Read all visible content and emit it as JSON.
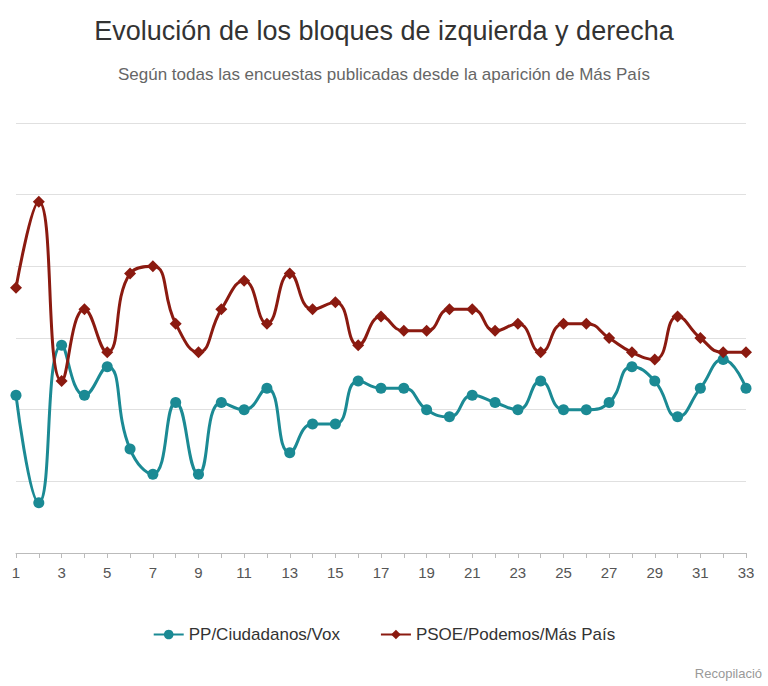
{
  "chart_data": {
    "type": "line",
    "title": "Evolución de los bloques de izquierda y derecha",
    "subtitle": "Según todas las encuestas publicadas desde la aparición de Más País",
    "annotation": "Recopilació",
    "categories": [
      "1",
      null,
      "3",
      null,
      "5",
      null,
      "7",
      null,
      "9",
      null,
      "11",
      null,
      "13",
      null,
      "15",
      null,
      "17",
      null,
      "19",
      null,
      "21",
      null,
      "23",
      null,
      "25",
      null,
      "27",
      null,
      "29",
      null,
      "31",
      null,
      "33"
    ],
    "series": [
      {
        "name": "PP/Ciudadanos/Vox",
        "color": "#1b8a94",
        "marker": "circle",
        "values": [
          42.4,
          39.4,
          43.8,
          42.4,
          43.2,
          40.9,
          40.2,
          42.2,
          40.2,
          42.2,
          42.0,
          42.6,
          40.8,
          41.6,
          41.6,
          42.8,
          42.6,
          42.6,
          42.0,
          41.8,
          42.4,
          42.2,
          42.0,
          42.8,
          42.0,
          42.0,
          42.2,
          43.2,
          42.8,
          41.8,
          42.6,
          43.4,
          42.6
        ]
      },
      {
        "name": "PSOE/Podemos/Más País",
        "color": "#8b1a10",
        "marker": "diamond",
        "values": [
          45.4,
          47.8,
          42.8,
          44.8,
          43.6,
          45.8,
          46.0,
          44.4,
          43.6,
          44.8,
          45.6,
          44.4,
          45.8,
          44.8,
          45.0,
          43.8,
          44.6,
          44.2,
          44.2,
          44.8,
          44.8,
          44.2,
          44.4,
          43.6,
          44.4,
          44.4,
          44.0,
          43.6,
          43.4,
          44.6,
          44.0,
          43.6,
          43.6
        ]
      }
    ],
    "ylim": [
      38,
      50
    ],
    "yticks": [
      38,
      40,
      42,
      44,
      46,
      48,
      50
    ],
    "grid": true,
    "legend": "bottom",
    "tick_labels": "x"
  }
}
